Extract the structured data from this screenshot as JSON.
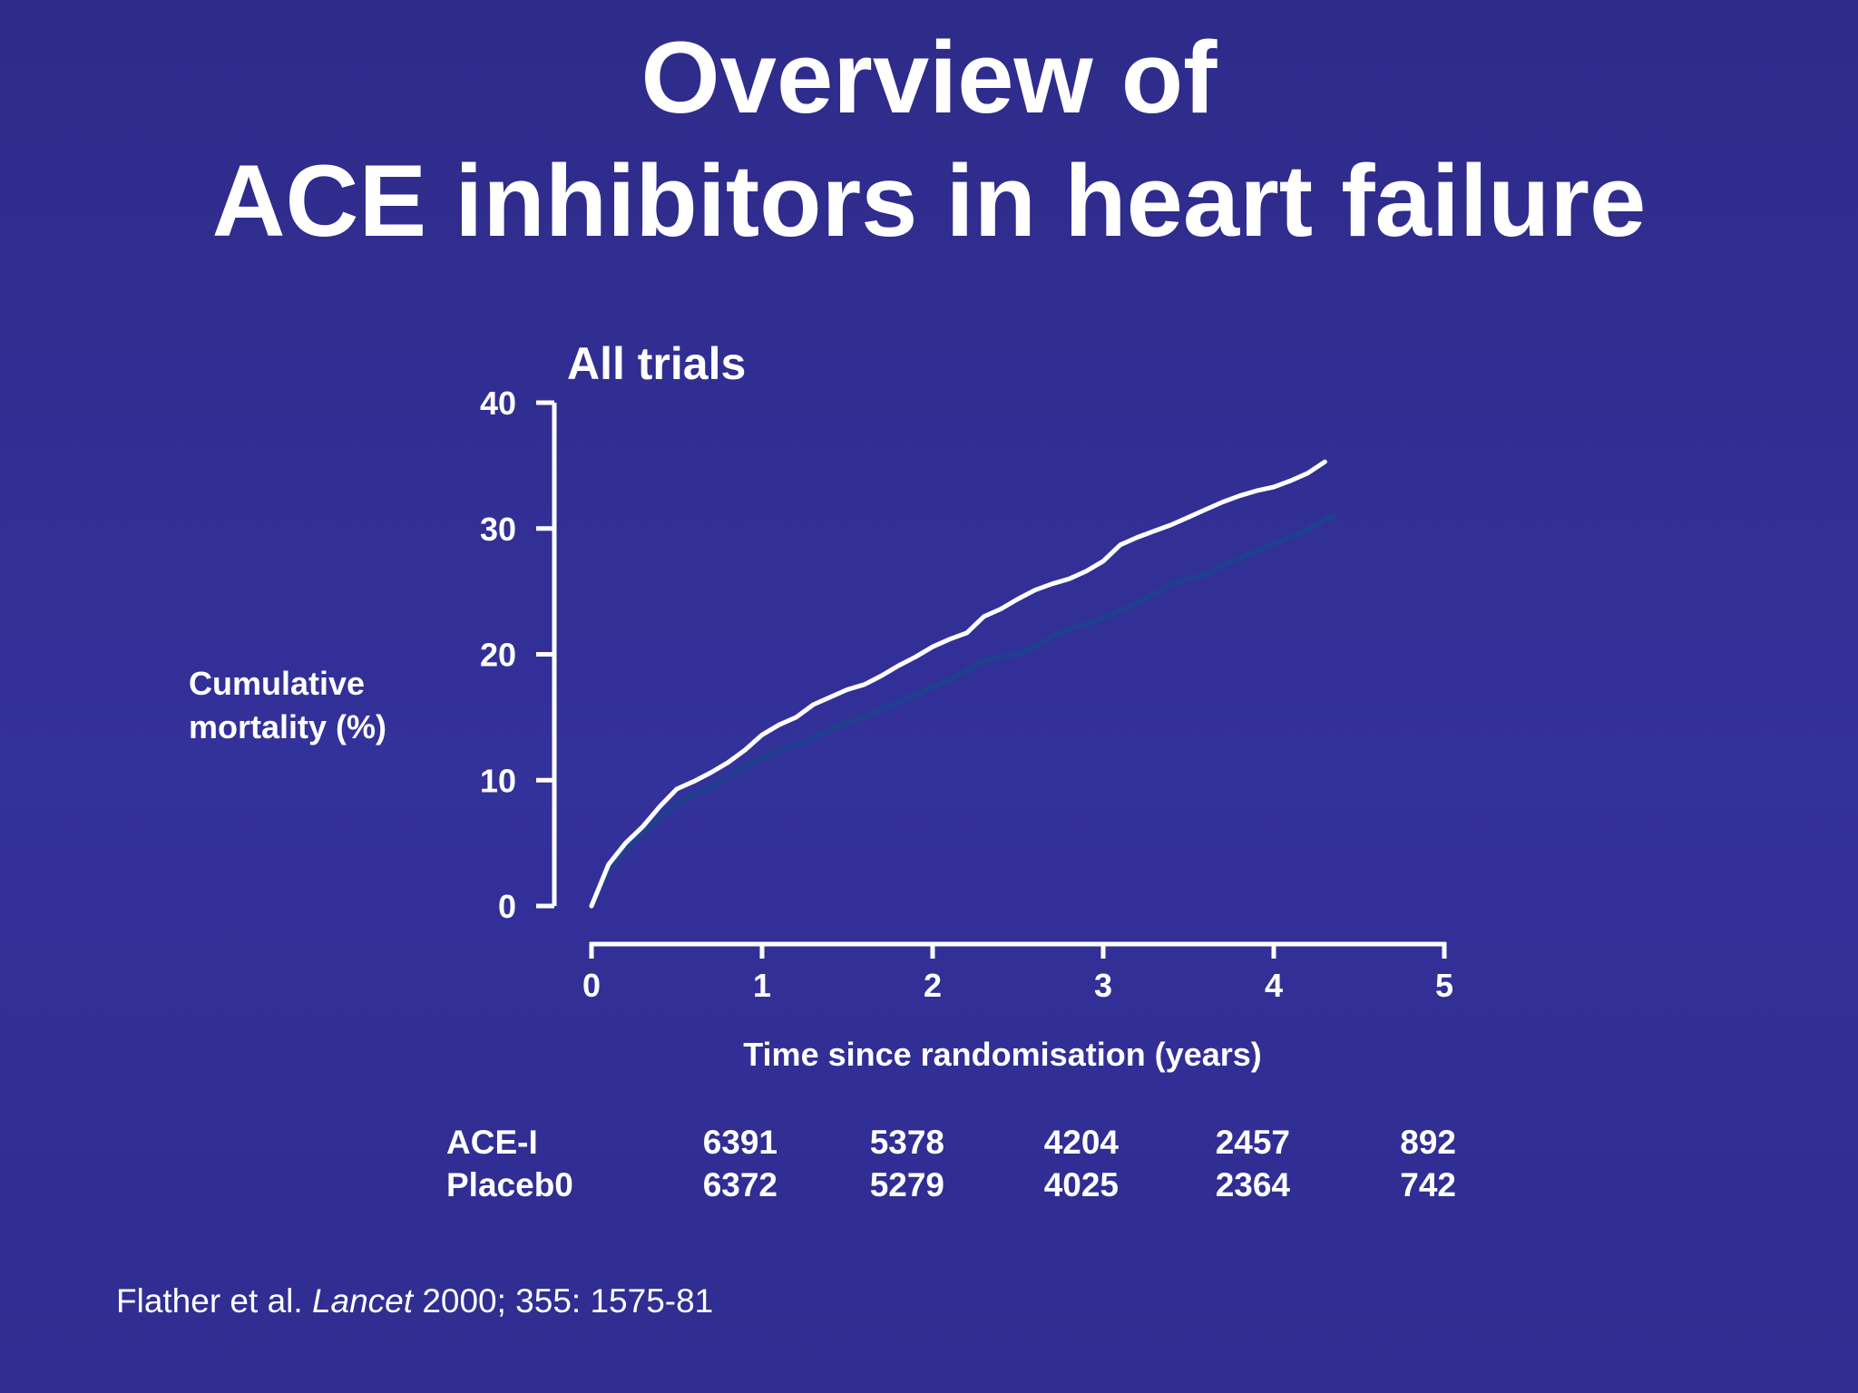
{
  "slide": {
    "title_line1": "Overview of",
    "title_line2": "ACE inhibitors in heart failure",
    "background_color": "#2f2d8e"
  },
  "citation": {
    "authors": "Flather et al.",
    "journal": "Lancet",
    "details": "2000; 355: 1575-81"
  },
  "chart_data": {
    "type": "line",
    "title": "All trials",
    "ylabel": "Cumulative\nmortality (%)",
    "ylabel_lines": [
      "Cumulative",
      "mortality (%)"
    ],
    "xlabel": "Time since randomisation (years)",
    "xlim": [
      0,
      5
    ],
    "ylim": [
      0,
      40
    ],
    "xticks": [
      0,
      1,
      2,
      3,
      4,
      5
    ],
    "yticks": [
      0,
      10,
      20,
      30,
      40
    ],
    "grid": false,
    "series": [
      {
        "color": "#ffffff",
        "points": [
          [
            0,
            0
          ],
          [
            0.1,
            3.3
          ],
          [
            0.2,
            5.0
          ],
          [
            0.3,
            6.3
          ],
          [
            0.4,
            7.9
          ],
          [
            0.5,
            9.3
          ],
          [
            0.6,
            9.9
          ],
          [
            0.7,
            10.6
          ],
          [
            0.8,
            11.4
          ],
          [
            0.9,
            12.4
          ],
          [
            1.0,
            13.6
          ],
          [
            1.1,
            14.4
          ],
          [
            1.2,
            15.0
          ],
          [
            1.3,
            16.0
          ],
          [
            1.4,
            16.6
          ],
          [
            1.5,
            17.2
          ],
          [
            1.6,
            17.6
          ],
          [
            1.7,
            18.3
          ],
          [
            1.8,
            19.1
          ],
          [
            1.9,
            19.8
          ],
          [
            2.0,
            20.6
          ],
          [
            2.1,
            21.2
          ],
          [
            2.2,
            21.7
          ],
          [
            2.3,
            23.0
          ],
          [
            2.4,
            23.6
          ],
          [
            2.5,
            24.4
          ],
          [
            2.6,
            25.1
          ],
          [
            2.7,
            25.6
          ],
          [
            2.8,
            26.0
          ],
          [
            2.9,
            26.6
          ],
          [
            3.0,
            27.4
          ],
          [
            3.1,
            28.7
          ],
          [
            3.2,
            29.3
          ],
          [
            3.3,
            29.8
          ],
          [
            3.4,
            30.3
          ],
          [
            3.5,
            30.9
          ],
          [
            3.6,
            31.5
          ],
          [
            3.7,
            32.1
          ],
          [
            3.8,
            32.6
          ],
          [
            3.9,
            33.0
          ],
          [
            4.0,
            33.3
          ],
          [
            4.1,
            33.8
          ],
          [
            4.2,
            34.4
          ],
          [
            4.3,
            35.3
          ]
        ]
      },
      {
        "color": "#1f3f8f",
        "points": [
          [
            0,
            0
          ],
          [
            0.1,
            2.9
          ],
          [
            0.2,
            4.5
          ],
          [
            0.3,
            5.8
          ],
          [
            0.4,
            7.0
          ],
          [
            0.5,
            8.1
          ],
          [
            0.6,
            8.9
          ],
          [
            0.7,
            9.5
          ],
          [
            0.8,
            10.3
          ],
          [
            0.9,
            11.1
          ],
          [
            1.0,
            11.8
          ],
          [
            1.1,
            12.4
          ],
          [
            1.2,
            12.8
          ],
          [
            1.3,
            13.4
          ],
          [
            1.4,
            14.0
          ],
          [
            1.5,
            14.6
          ],
          [
            1.6,
            15.0
          ],
          [
            1.7,
            15.6
          ],
          [
            1.8,
            16.2
          ],
          [
            1.9,
            16.8
          ],
          [
            2.0,
            17.4
          ],
          [
            2.1,
            18.0
          ],
          [
            2.2,
            18.7
          ],
          [
            2.3,
            19.5
          ],
          [
            2.4,
            19.8
          ],
          [
            2.5,
            20.0
          ],
          [
            2.6,
            20.6
          ],
          [
            2.7,
            21.4
          ],
          [
            2.8,
            22.0
          ],
          [
            2.9,
            22.4
          ],
          [
            3.0,
            22.9
          ],
          [
            3.1,
            23.5
          ],
          [
            3.2,
            24.1
          ],
          [
            3.3,
            24.8
          ],
          [
            3.4,
            25.6
          ],
          [
            3.5,
            26.0
          ],
          [
            3.6,
            26.3
          ],
          [
            3.7,
            27.1
          ],
          [
            3.8,
            27.6
          ],
          [
            3.9,
            28.2
          ],
          [
            4.0,
            28.8
          ],
          [
            4.1,
            29.3
          ],
          [
            4.2,
            29.9
          ],
          [
            4.3,
            30.7
          ],
          [
            4.35,
            31.0
          ]
        ]
      }
    ],
    "risk_table": {
      "rows": [
        {
          "label": "ACE-I",
          "values": [
            "6391",
            "5378",
            "4204",
            "2457",
            "892"
          ]
        },
        {
          "label": "Placeb0",
          "values": [
            "6372",
            "5279",
            "4025",
            "2364",
            "742"
          ]
        }
      ]
    }
  }
}
